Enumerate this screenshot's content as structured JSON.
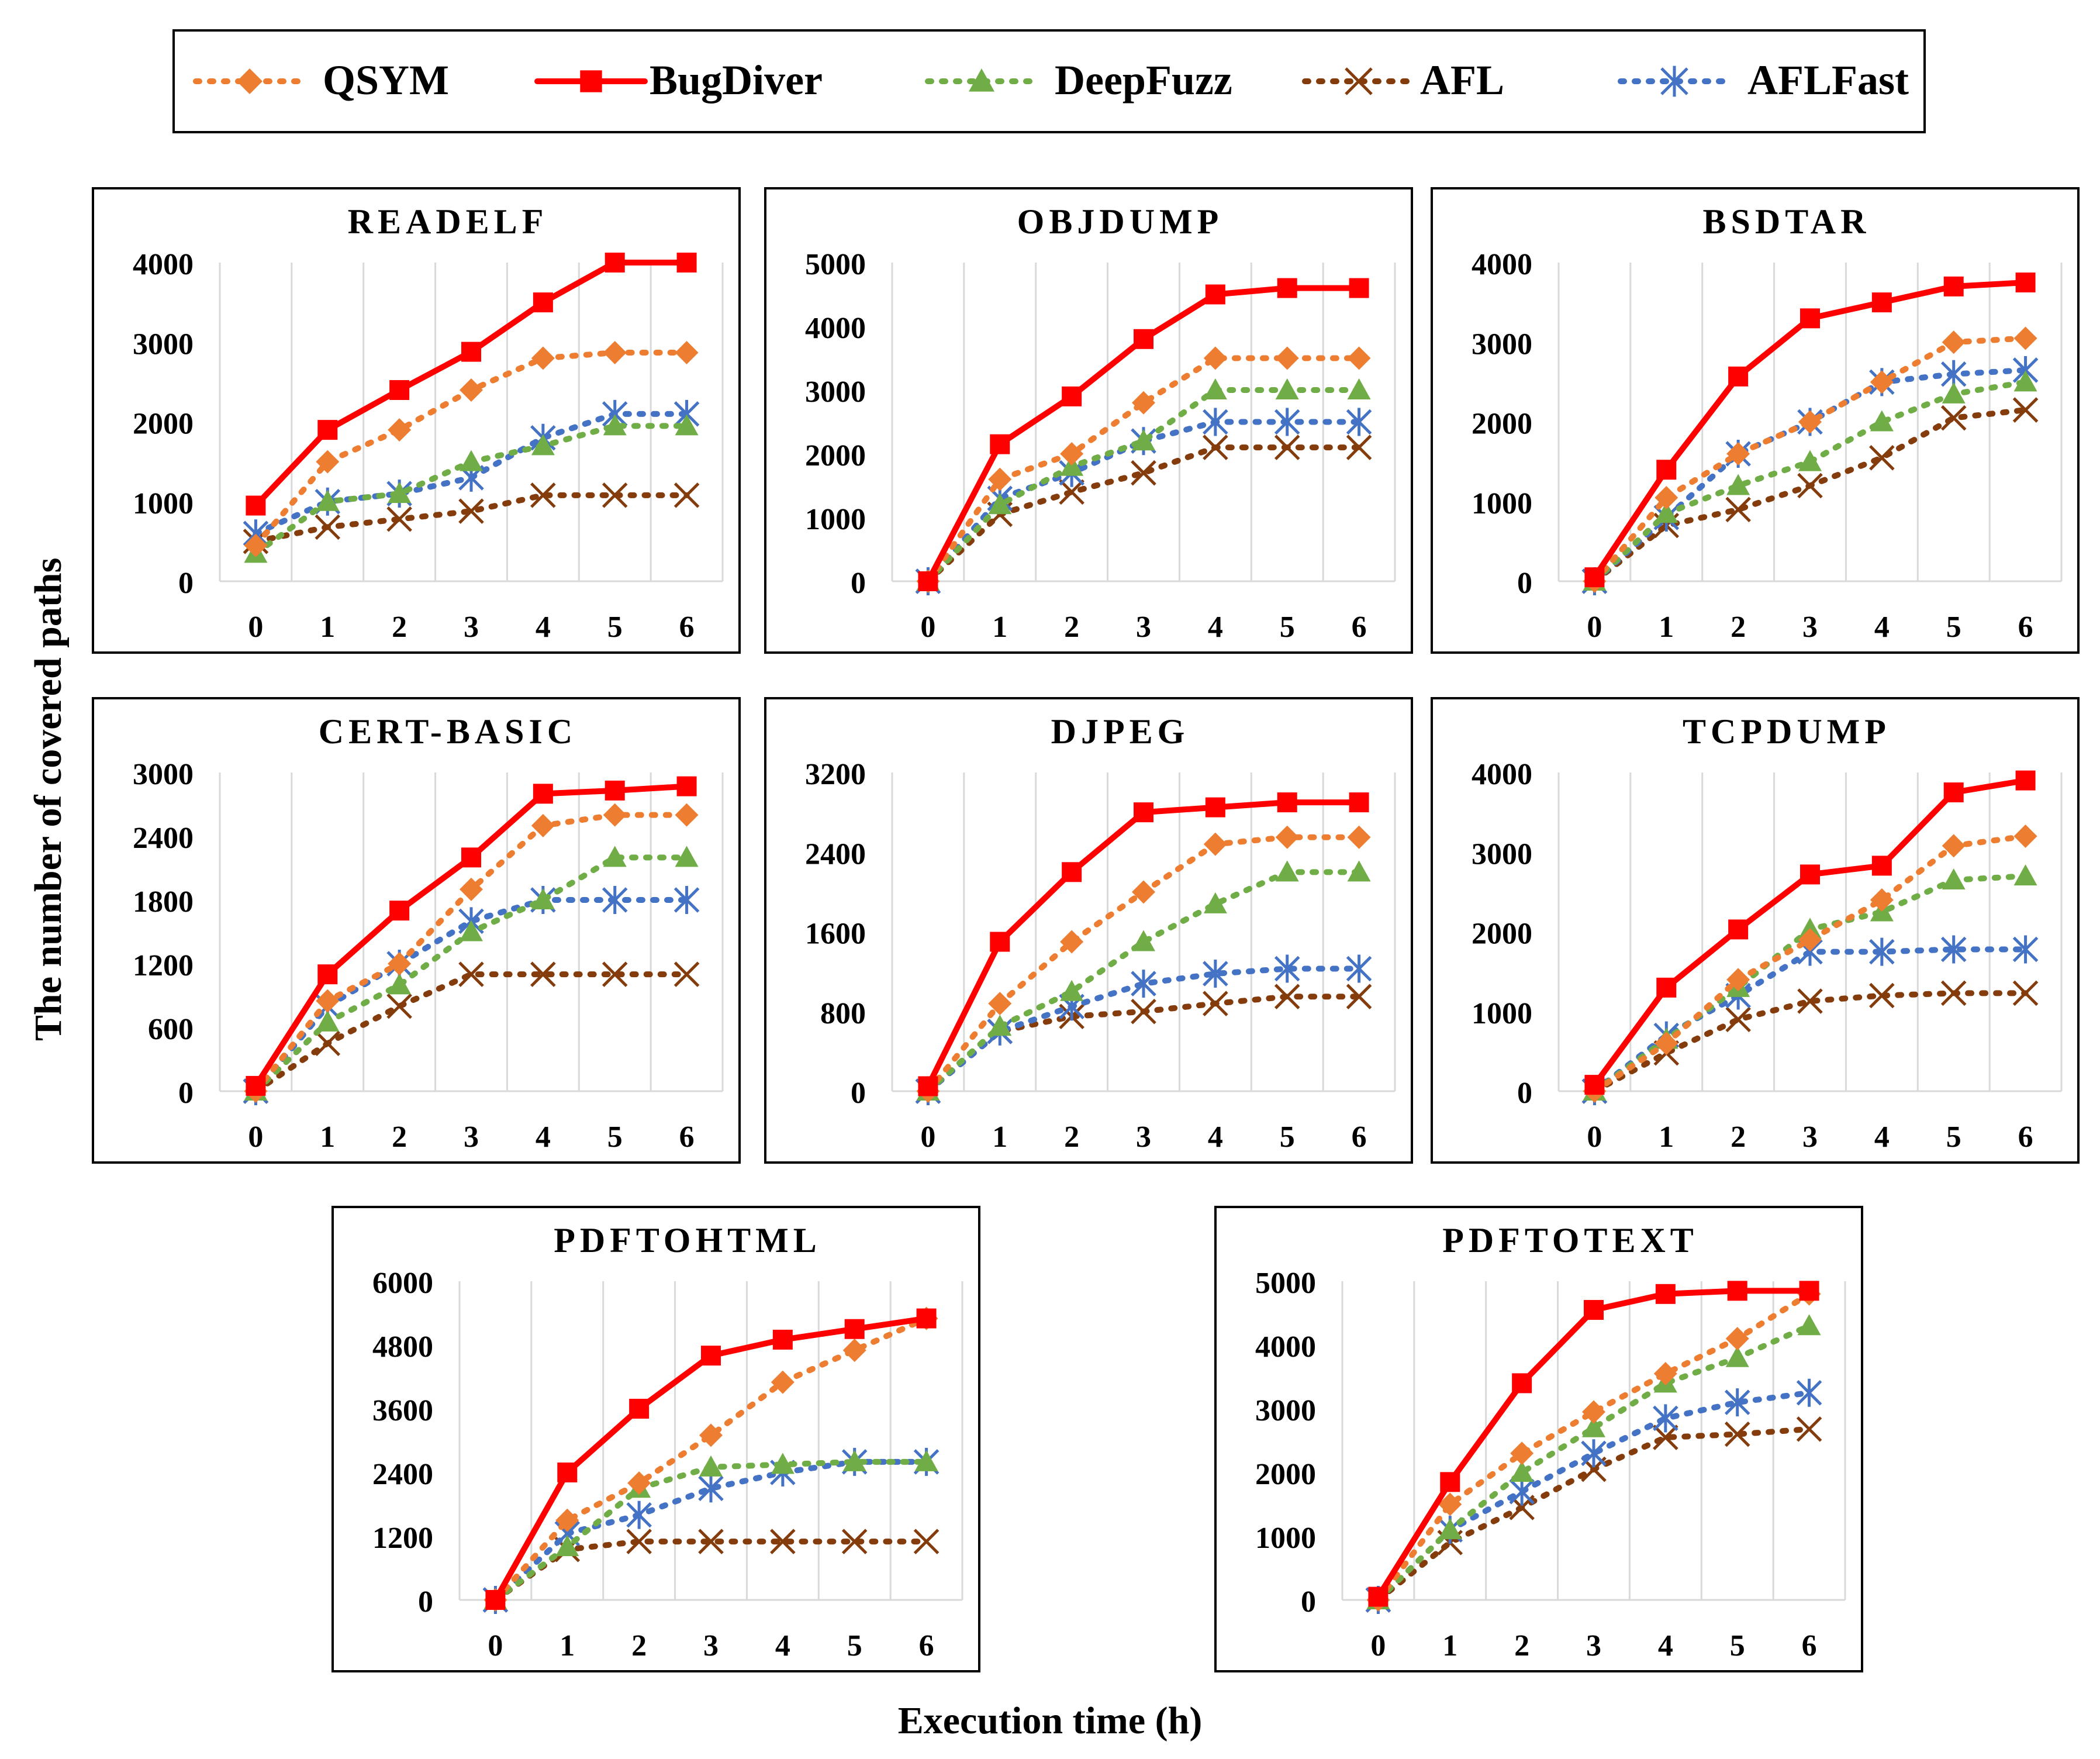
{
  "colors": {
    "QSYM": "#ED7D31",
    "BugDiver": "#FF0000",
    "DeepFuzz": "#70AD47",
    "AFL": "#843C0C",
    "AFLFast": "#4472C4"
  },
  "legend": [
    "QSYM",
    "BugDiver",
    "DeepFuzz",
    "AFL",
    "AFLFast"
  ],
  "axes": {
    "ylabel": "The number of covered paths",
    "xlabel": "Execution time (h)"
  },
  "chart_data": [
    {
      "type": "line",
      "title": "READELF",
      "x": [
        0,
        1,
        2,
        3,
        4,
        5,
        6
      ],
      "ylim": [
        0,
        4000
      ],
      "yticks": [
        0,
        1000,
        2000,
        3000,
        4000
      ],
      "series": [
        {
          "name": "QSYM",
          "values": [
            450,
            1500,
            1900,
            2400,
            2800,
            2870,
            2870
          ]
        },
        {
          "name": "BugDiver",
          "values": [
            950,
            1900,
            2400,
            2880,
            3500,
            4000,
            4000
          ]
        },
        {
          "name": "DeepFuzz",
          "values": [
            350,
            1000,
            1100,
            1500,
            1700,
            1950,
            1950
          ]
        },
        {
          "name": "AFL",
          "values": [
            500,
            680,
            780,
            880,
            1080,
            1080,
            1080
          ]
        },
        {
          "name": "AFLFast",
          "values": [
            600,
            1000,
            1100,
            1300,
            1800,
            2100,
            2100
          ]
        }
      ]
    },
    {
      "type": "line",
      "title": "OBJDUMP",
      "x": [
        0,
        1,
        2,
        3,
        4,
        5,
        6
      ],
      "ylim": [
        0,
        5000
      ],
      "yticks": [
        0,
        1000,
        2000,
        3000,
        4000,
        5000
      ],
      "series": [
        {
          "name": "QSYM",
          "values": [
            0,
            1600,
            2000,
            2800,
            3500,
            3500,
            3500
          ]
        },
        {
          "name": "BugDiver",
          "values": [
            0,
            2150,
            2900,
            3800,
            4500,
            4600,
            4600
          ]
        },
        {
          "name": "DeepFuzz",
          "values": [
            0,
            1200,
            1800,
            2200,
            3000,
            3000,
            3000
          ]
        },
        {
          "name": "AFL",
          "values": [
            0,
            1050,
            1400,
            1700,
            2100,
            2100,
            2100
          ]
        },
        {
          "name": "AFLFast",
          "values": [
            0,
            1300,
            1700,
            2200,
            2500,
            2500,
            2500
          ]
        }
      ]
    },
    {
      "type": "line",
      "title": "BSDTAR",
      "x": [
        0,
        1,
        2,
        3,
        4,
        5,
        6
      ],
      "ylim": [
        0,
        4000
      ],
      "yticks": [
        0,
        1000,
        2000,
        3000,
        4000
      ],
      "series": [
        {
          "name": "QSYM",
          "values": [
            0,
            1050,
            1600,
            2000,
            2500,
            3000,
            3050
          ]
        },
        {
          "name": "BugDiver",
          "values": [
            50,
            1400,
            2570,
            3300,
            3500,
            3700,
            3750
          ]
        },
        {
          "name": "DeepFuzz",
          "values": [
            0,
            850,
            1200,
            1500,
            2000,
            2350,
            2500
          ]
        },
        {
          "name": "AFL",
          "values": [
            0,
            700,
            900,
            1200,
            1550,
            2050,
            2150
          ]
        },
        {
          "name": "AFLFast",
          "values": [
            0,
            800,
            1600,
            2000,
            2500,
            2600,
            2650
          ]
        }
      ]
    },
    {
      "type": "line",
      "title": "CERT-BASIC",
      "x": [
        0,
        1,
        2,
        3,
        4,
        5,
        6
      ],
      "ylim": [
        0,
        3000
      ],
      "yticks": [
        0,
        600,
        1200,
        1800,
        2400,
        3000
      ],
      "series": [
        {
          "name": "QSYM",
          "values": [
            0,
            850,
            1200,
            1900,
            2500,
            2600,
            2600
          ]
        },
        {
          "name": "BugDiver",
          "values": [
            50,
            1100,
            1700,
            2200,
            2800,
            2830,
            2870
          ]
        },
        {
          "name": "DeepFuzz",
          "values": [
            0,
            650,
            1000,
            1500,
            1800,
            2200,
            2200
          ]
        },
        {
          "name": "AFL",
          "values": [
            0,
            450,
            800,
            1100,
            1100,
            1100,
            1100
          ]
        },
        {
          "name": "AFLFast",
          "values": [
            0,
            800,
            1200,
            1600,
            1800,
            1800,
            1800
          ]
        }
      ]
    },
    {
      "type": "line",
      "title": "DJPEG",
      "x": [
        0,
        1,
        2,
        3,
        4,
        5,
        6
      ],
      "ylim": [
        0,
        3200
      ],
      "yticks": [
        0,
        800,
        1600,
        2400,
        3200
      ],
      "series": [
        {
          "name": "QSYM",
          "values": [
            0,
            880,
            1500,
            2000,
            2480,
            2550,
            2550
          ]
        },
        {
          "name": "BugDiver",
          "values": [
            50,
            1500,
            2200,
            2800,
            2850,
            2900,
            2900
          ]
        },
        {
          "name": "DeepFuzz",
          "values": [
            0,
            650,
            1000,
            1500,
            1880,
            2200,
            2200
          ]
        },
        {
          "name": "AFL",
          "values": [
            0,
            600,
            750,
            800,
            880,
            950,
            950
          ]
        },
        {
          "name": "AFLFast",
          "values": [
            0,
            600,
            850,
            1080,
            1180,
            1230,
            1230
          ]
        }
      ]
    },
    {
      "type": "line",
      "title": "TCPDUMP",
      "x": [
        0,
        1,
        2,
        3,
        4,
        5,
        6
      ],
      "ylim": [
        0,
        4000
      ],
      "yticks": [
        0,
        1000,
        2000,
        3000,
        4000
      ],
      "series": [
        {
          "name": "QSYM",
          "values": [
            0,
            600,
            1400,
            1900,
            2400,
            3080,
            3200
          ]
        },
        {
          "name": "BugDiver",
          "values": [
            80,
            1300,
            2030,
            2720,
            2830,
            3750,
            3900
          ]
        },
        {
          "name": "DeepFuzz",
          "values": [
            0,
            650,
            1300,
            2030,
            2250,
            2650,
            2700
          ]
        },
        {
          "name": "AFL",
          "values": [
            0,
            480,
            900,
            1130,
            1200,
            1230,
            1230
          ]
        },
        {
          "name": "AFLFast",
          "values": [
            0,
            700,
            1200,
            1750,
            1750,
            1780,
            1780
          ]
        }
      ]
    },
    {
      "type": "line",
      "title": "PDFTOHTML",
      "x": [
        0,
        1,
        2,
        3,
        4,
        5,
        6
      ],
      "ylim": [
        0,
        6000
      ],
      "yticks": [
        0,
        1200,
        2400,
        3600,
        4800,
        6000
      ],
      "series": [
        {
          "name": "QSYM",
          "values": [
            0,
            1500,
            2200,
            3100,
            4100,
            4700,
            5300
          ]
        },
        {
          "name": "BugDiver",
          "values": [
            0,
            2400,
            3600,
            4600,
            4900,
            5100,
            5300
          ]
        },
        {
          "name": "DeepFuzz",
          "values": [
            0,
            1000,
            2100,
            2500,
            2550,
            2600,
            2600
          ]
        },
        {
          "name": "AFL",
          "values": [
            0,
            950,
            1100,
            1100,
            1100,
            1100,
            1100
          ]
        },
        {
          "name": "AFLFast",
          "values": [
            0,
            1250,
            1600,
            2100,
            2400,
            2600,
            2600
          ]
        }
      ]
    },
    {
      "type": "line",
      "title": "PDFTOTEXT",
      "x": [
        0,
        1,
        2,
        3,
        4,
        5,
        6
      ],
      "ylim": [
        0,
        5000
      ],
      "yticks": [
        0,
        1000,
        2000,
        3000,
        4000,
        5000
      ],
      "series": [
        {
          "name": "QSYM",
          "values": [
            0,
            1500,
            2300,
            2950,
            3550,
            4100,
            4800
          ]
        },
        {
          "name": "BugDiver",
          "values": [
            50,
            1850,
            3400,
            4550,
            4800,
            4850,
            4850
          ]
        },
        {
          "name": "DeepFuzz",
          "values": [
            0,
            1100,
            2000,
            2700,
            3400,
            3800,
            4300
          ]
        },
        {
          "name": "AFL",
          "values": [
            0,
            900,
            1450,
            2050,
            2550,
            2600,
            2680
          ]
        },
        {
          "name": "AFLFast",
          "values": [
            0,
            1100,
            1700,
            2300,
            2850,
            3100,
            3250
          ]
        }
      ]
    }
  ]
}
